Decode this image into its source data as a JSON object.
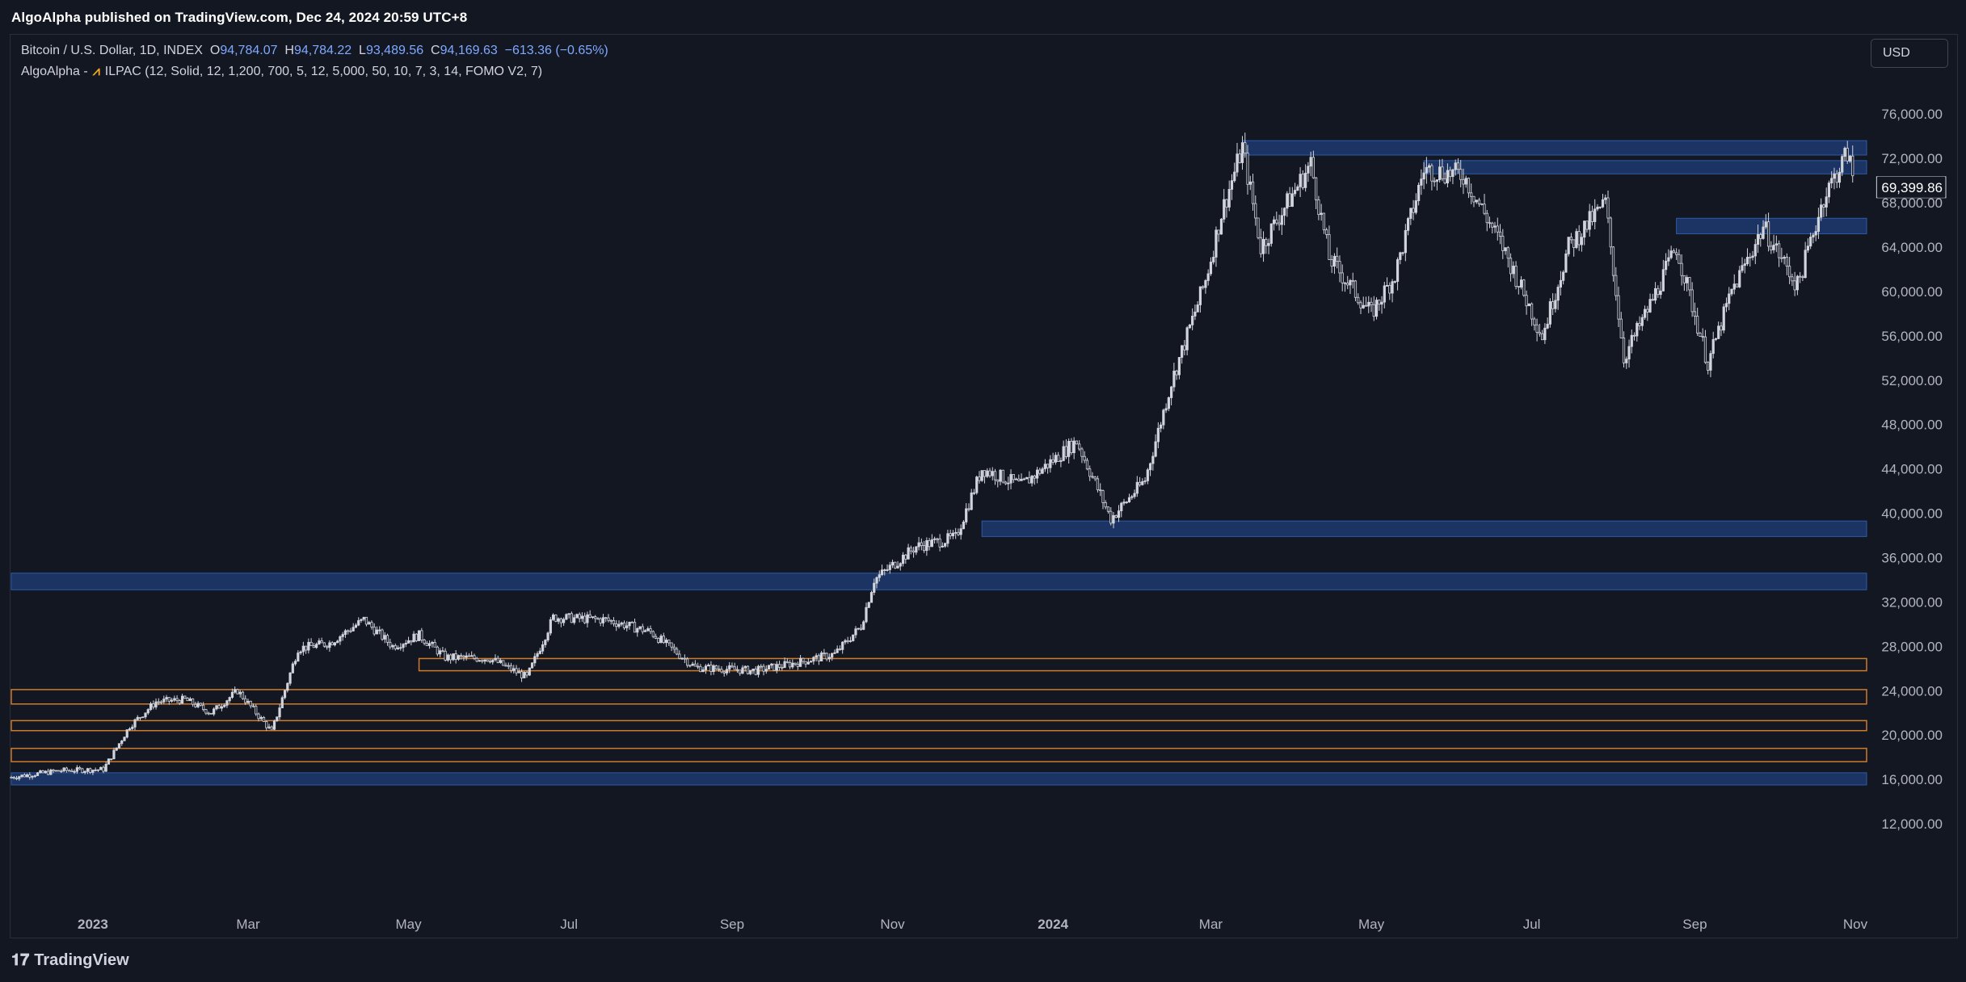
{
  "header": {
    "published_by": "AlgoAlpha published on TradingView.com, Dec 24, 2024 20:59 UTC+8"
  },
  "legend": {
    "symbol": "Bitcoin / U.S. Dollar, 1D, INDEX",
    "open_label": "O",
    "open": "94,784.07",
    "high_label": "H",
    "high": "94,784.22",
    "low_label": "L",
    "low": "93,489.56",
    "close_label": "C",
    "close": "94,169.63",
    "change": "−613.36 (−0.65%)",
    "indicator_prefix": "AlgoAlpha -",
    "indicator_icon": "algoalpha-logo-icon",
    "indicator": "ILPAC (12, Solid, 12, 1,200, 700, 5, 12, 5,000, 50, 10, 7, 3, 14, FOMO V2, 7)"
  },
  "currency_button": "USD",
  "last_price_label": "69,399.86",
  "footer": {
    "brand": "TradingView",
    "brand_icon": "tradingview-logo-icon"
  },
  "colors": {
    "background": "#131722",
    "candle": "#d1d4dc",
    "blue_zone": "#1e3a6e",
    "orange_zone": "#d07a2b",
    "grid_text": "#b2b5be"
  },
  "chart_data": {
    "type": "candlestick",
    "title": "Bitcoin / U.S. Dollar, 1D, INDEX",
    "y_ticks": [
      12000,
      16000,
      20000,
      24000,
      28000,
      32000,
      36000,
      40000,
      44000,
      48000,
      52000,
      56000,
      60000,
      64000,
      68000,
      72000,
      76000
    ],
    "y_tick_labels": [
      "12,000.00",
      "16,000.00",
      "20,000.00",
      "24,000.00",
      "28,000.00",
      "32,000.00",
      "36,000.00",
      "40,000.00",
      "44,000.00",
      "48,000.00",
      "52,000.00",
      "56,000.00",
      "60,000.00",
      "64,000.00",
      "68,000.00",
      "72,000.00",
      "76,000.00"
    ],
    "ylim": [
      8000,
      79000
    ],
    "x_ticks": [
      "2023",
      "Mar",
      "May",
      "Jul",
      "Sep",
      "Nov",
      "2024",
      "Mar",
      "May",
      "Jul",
      "Sep",
      "Nov"
    ],
    "x_tick_dates": [
      "2023-01-01",
      "2023-03-01",
      "2023-05-01",
      "2023-07-01",
      "2023-09-01",
      "2023-11-01",
      "2024-01-01",
      "2024-03-01",
      "2024-05-01",
      "2024-07-01",
      "2024-09-01",
      "2024-11-01"
    ],
    "x_range": [
      "2022-12-01",
      "2024-11-01"
    ],
    "approx_close_path": [
      {
        "date": "2022-12-01",
        "close": 16200
      },
      {
        "date": "2022-12-20",
        "close": 16800
      },
      {
        "date": "2023-01-05",
        "close": 16900
      },
      {
        "date": "2023-01-15",
        "close": 20800
      },
      {
        "date": "2023-01-25",
        "close": 23000
      },
      {
        "date": "2023-02-05",
        "close": 23200
      },
      {
        "date": "2023-02-15",
        "close": 22000
      },
      {
        "date": "2023-02-25",
        "close": 24000
      },
      {
        "date": "2023-03-10",
        "close": 20300
      },
      {
        "date": "2023-03-20",
        "close": 27800
      },
      {
        "date": "2023-04-01",
        "close": 28300
      },
      {
        "date": "2023-04-14",
        "close": 30400
      },
      {
        "date": "2023-04-25",
        "close": 28000
      },
      {
        "date": "2023-05-05",
        "close": 29000
      },
      {
        "date": "2023-05-15",
        "close": 27000
      },
      {
        "date": "2023-06-01",
        "close": 26900
      },
      {
        "date": "2023-06-15",
        "close": 25200
      },
      {
        "date": "2023-06-25",
        "close": 30600
      },
      {
        "date": "2023-07-15",
        "close": 30400
      },
      {
        "date": "2023-08-01",
        "close": 29300
      },
      {
        "date": "2023-08-18",
        "close": 26100
      },
      {
        "date": "2023-09-10",
        "close": 25800
      },
      {
        "date": "2023-09-25",
        "close": 26500
      },
      {
        "date": "2023-10-10",
        "close": 27300
      },
      {
        "date": "2023-10-20",
        "close": 29800
      },
      {
        "date": "2023-10-25",
        "close": 34000
      },
      {
        "date": "2023-11-10",
        "close": 37000
      },
      {
        "date": "2023-11-25",
        "close": 37800
      },
      {
        "date": "2023-12-05",
        "close": 44000
      },
      {
        "date": "2023-12-20",
        "close": 42500
      },
      {
        "date": "2024-01-10",
        "close": 46500
      },
      {
        "date": "2024-01-23",
        "close": 39500
      },
      {
        "date": "2024-02-05",
        "close": 43000
      },
      {
        "date": "2024-02-15",
        "close": 51800
      },
      {
        "date": "2024-02-28",
        "close": 61000
      },
      {
        "date": "2024-03-05",
        "close": 67000
      },
      {
        "date": "2024-03-13",
        "close": 73000
      },
      {
        "date": "2024-03-20",
        "close": 64000
      },
      {
        "date": "2024-04-08",
        "close": 71500
      },
      {
        "date": "2024-04-15",
        "close": 63000
      },
      {
        "date": "2024-05-01",
        "close": 58000
      },
      {
        "date": "2024-05-10",
        "close": 61500
      },
      {
        "date": "2024-05-21",
        "close": 71000
      },
      {
        "date": "2024-06-05",
        "close": 70500
      },
      {
        "date": "2024-06-20",
        "close": 64000
      },
      {
        "date": "2024-07-05",
        "close": 56000
      },
      {
        "date": "2024-07-15",
        "close": 64000
      },
      {
        "date": "2024-07-29",
        "close": 68000
      },
      {
        "date": "2024-08-05",
        "close": 54000
      },
      {
        "date": "2024-08-15",
        "close": 58800
      },
      {
        "date": "2024-08-25",
        "close": 64000
      },
      {
        "date": "2024-09-06",
        "close": 53500
      },
      {
        "date": "2024-09-15",
        "close": 60000
      },
      {
        "date": "2024-09-27",
        "close": 65800
      },
      {
        "date": "2024-10-10",
        "close": 60500
      },
      {
        "date": "2024-10-20",
        "close": 68500
      },
      {
        "date": "2024-10-29",
        "close": 72500
      },
      {
        "date": "2024-11-01",
        "close": 69400
      }
    ],
    "zones": [
      {
        "kind": "blue",
        "from": "2024-03-13",
        "low": 72300,
        "high": 73600
      },
      {
        "kind": "blue",
        "from": "2024-05-21",
        "low": 70600,
        "high": 71800
      },
      {
        "kind": "blue",
        "from": "2024-08-25",
        "low": 65200,
        "high": 66600
      },
      {
        "kind": "blue",
        "from": "2023-12-05",
        "low": 37900,
        "high": 39300
      },
      {
        "kind": "blue",
        "from": "2022-12-01",
        "low": 33100,
        "high": 34600
      },
      {
        "kind": "orange",
        "from": "2023-05-05",
        "low": 25800,
        "high": 26900
      },
      {
        "kind": "orange",
        "from": "2022-12-01",
        "low": 22800,
        "high": 24100
      },
      {
        "kind": "orange",
        "from": "2022-12-01",
        "low": 20400,
        "high": 21300
      },
      {
        "kind": "orange",
        "from": "2022-12-01",
        "low": 17600,
        "high": 18800
      },
      {
        "kind": "blue",
        "from": "2022-12-01",
        "low": 15500,
        "high": 16600
      }
    ],
    "last_price": 69399.86
  }
}
